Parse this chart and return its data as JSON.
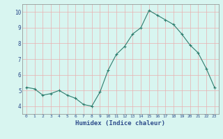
{
  "x": [
    0,
    1,
    2,
    3,
    4,
    5,
    6,
    7,
    8,
    9,
    10,
    11,
    12,
    13,
    14,
    15,
    16,
    17,
    18,
    19,
    20,
    21,
    22,
    23
  ],
  "y": [
    5.2,
    5.1,
    4.7,
    4.8,
    5.0,
    4.7,
    4.5,
    4.1,
    4.0,
    4.9,
    6.3,
    7.3,
    7.8,
    8.6,
    9.0,
    10.1,
    9.8,
    9.5,
    9.2,
    8.6,
    7.9,
    7.4,
    6.4,
    5.2
  ],
  "xlabel": "Humidex (Indice chaleur)",
  "ylim": [
    3.5,
    10.5
  ],
  "xlim": [
    -0.5,
    23.5
  ],
  "line_color": "#2e7d6e",
  "marker": "+",
  "bg_color": "#d8f5f0",
  "grid_color_major": "#e8b0b0",
  "grid_color_minor": "#e8b0b0",
  "axis_bg": "#d8f5f0",
  "xlabel_color": "#2e4d8c",
  "tick_color": "#2e4d8c",
  "yticks": [
    4,
    5,
    6,
    7,
    8,
    9,
    10
  ],
  "xticks": [
    0,
    1,
    2,
    3,
    4,
    5,
    6,
    7,
    8,
    9,
    10,
    11,
    12,
    13,
    14,
    15,
    16,
    17,
    18,
    19,
    20,
    21,
    22,
    23
  ]
}
